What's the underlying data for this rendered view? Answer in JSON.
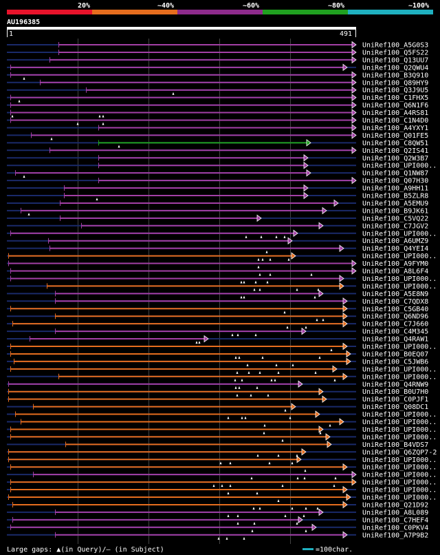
{
  "legend": {
    "ticks": [
      "20%",
      "~40%",
      "~60%",
      "~80%",
      "~100%"
    ],
    "colors": [
      "#e8132b",
      "#e66d1e",
      "#8e2b8c",
      "#20a020",
      "#1fb0c0"
    ]
  },
  "query": {
    "id": "AU196385",
    "start": "1",
    "end": "491"
  },
  "footer": {
    "gaps_text": "Large gaps: ▲(in Query)/— (in Subject)",
    "scale_text": "=100char."
  },
  "colors": {
    "orange": "#e66d1e",
    "purple": "#a33fa6",
    "green": "#20a020",
    "navy": "#1a2a6a",
    "grid": "#444444",
    "bar": "#ffffff"
  },
  "hits": [
    {
      "name": "UniRef100_A5G0S3",
      "c": "p",
      "s": 85,
      "e": 518,
      "g": []
    },
    {
      "name": "UniRef100_Q5FS22",
      "c": "p",
      "s": 85,
      "e": 518,
      "g": []
    },
    {
      "name": "UniRef100_Q13UU7",
      "c": "p",
      "s": 72,
      "e": 518,
      "g": []
    },
    {
      "name": "UniRef100_Q2QWU4",
      "c": "p",
      "s": 15,
      "e": 505,
      "g": []
    },
    {
      "name": "UniRef100_B3Q910",
      "c": "p",
      "s": 15,
      "e": 518,
      "g": [
        35
      ]
    },
    {
      "name": "UniRef100_Q89HY9",
      "c": "p",
      "s": 58,
      "e": 518,
      "g": []
    },
    {
      "name": "UniRef100_Q3J9U5",
      "c": "p",
      "s": 125,
      "e": 518,
      "g": [
        252
      ]
    },
    {
      "name": "UniRef100_C1FHX5",
      "c": "p",
      "s": 15,
      "e": 518,
      "g": [
        28
      ]
    },
    {
      "name": "UniRef100_Q6N1F6",
      "c": "p",
      "s": 15,
      "e": 518,
      "g": []
    },
    {
      "name": "UniRef100_A4RS81",
      "c": "p",
      "s": 15,
      "e": 518,
      "g": [
        18,
        145,
        150
      ]
    },
    {
      "name": "UniRef100_C1N4D0",
      "c": "p",
      "s": 15,
      "e": 518,
      "g": [
        113,
        150
      ]
    },
    {
      "name": "UniRef100_A4YXY1",
      "c": "p",
      "s": 143,
      "e": 518,
      "g": []
    },
    {
      "name": "UniRef100_Q01FE5",
      "c": "p",
      "s": 45,
      "e": 518,
      "g": [
        75
      ]
    },
    {
      "name": "UniRef100_C8QW51",
      "c": "g",
      "s": 143,
      "e": 452,
      "g": [
        173
      ]
    },
    {
      "name": "UniRef100_Q2IS41",
      "c": "p",
      "s": 72,
      "e": 518,
      "g": []
    },
    {
      "name": "UniRef100_Q2W3B7",
      "c": "p",
      "s": 143,
      "e": 448,
      "g": []
    },
    {
      "name": "UniRef100_UPI000..",
      "c": "p",
      "s": 143,
      "e": 448,
      "g": []
    },
    {
      "name": "UniRef100_Q1NW87",
      "c": "p",
      "s": 22,
      "e": 452,
      "g": [
        35
      ]
    },
    {
      "name": "UniRef100_Q07H30",
      "c": "p",
      "s": 143,
      "e": 518,
      "g": []
    },
    {
      "name": "UniRef100_A9HH11",
      "c": "p",
      "s": 93,
      "e": 448,
      "g": []
    },
    {
      "name": "UniRef100_B5ZLR8",
      "c": "p",
      "s": 93,
      "e": 448,
      "g": [
        141
      ]
    },
    {
      "name": "UniRef100_A5EMU9",
      "c": "p",
      "s": 87,
      "e": 492,
      "g": []
    },
    {
      "name": "UniRef100_B9JK61",
      "c": "p",
      "s": 30,
      "e": 475,
      "g": [
        42
      ]
    },
    {
      "name": "UniRef100_C5VQ22",
      "c": "p",
      "s": 87,
      "e": 380,
      "g": []
    },
    {
      "name": "UniRef100_C7JGV2",
      "c": "p",
      "s": 118,
      "e": 470,
      "g": []
    },
    {
      "name": "UniRef100_UPI000..",
      "c": "p",
      "s": 15,
      "e": 433,
      "g": [
        358,
        380,
        402,
        414
      ]
    },
    {
      "name": "UniRef100_A6UMZ9",
      "c": "p",
      "s": 70,
      "e": 425,
      "g": []
    },
    {
      "name": "UniRef100_Q4YEI4",
      "c": "p",
      "s": 72,
      "e": 500,
      "g": [
        388
      ]
    },
    {
      "name": "UniRef100_UPI000..",
      "c": "o",
      "s": 12,
      "e": 430,
      "g": [
        376,
        382,
        393,
        420
      ]
    },
    {
      "name": "UniRef100_A9FYM0",
      "c": "p",
      "s": 12,
      "e": 518,
      "g": [
        376
      ]
    },
    {
      "name": "UniRef100_A8L6F4",
      "c": "p",
      "s": 15,
      "e": 518,
      "g": [
        378,
        393,
        453
      ]
    },
    {
      "name": "UniRef100_UPI000..",
      "c": "p",
      "s": 15,
      "e": 500,
      "g": [
        351,
        355,
        372,
        389
      ]
    },
    {
      "name": "UniRef100_UPI000..",
      "c": "o",
      "s": 68,
      "e": 500,
      "g": [
        370,
        378,
        432,
        463
      ]
    },
    {
      "name": "UniRef100_A5E8N9",
      "c": "p",
      "s": 80,
      "e": 470,
      "g": [
        351,
        355,
        458
      ]
    },
    {
      "name": "UniRef100_C7QDX8",
      "c": "p",
      "s": 80,
      "e": 505,
      "g": []
    },
    {
      "name": "UniRef100_C5GB40",
      "c": "o",
      "s": 15,
      "e": 505,
      "g": [
        414
      ]
    },
    {
      "name": "UniRef100_Q6ND96",
      "c": "o",
      "s": 80,
      "e": 505,
      "g": [
        461,
        470
      ]
    },
    {
      "name": "UniRef100_C7J660",
      "c": "o",
      "s": 18,
      "e": 505,
      "g": [
        418,
        445
      ]
    },
    {
      "name": "UniRef100_C4M345",
      "c": "p",
      "s": 80,
      "e": 445,
      "g": [
        338,
        346,
        372
      ]
    },
    {
      "name": "UniRef100_Q4RAW1",
      "c": "p",
      "s": 43,
      "e": 303,
      "g": [
        286,
        290
      ]
    },
    {
      "name": "UniRef100_UPI000..",
      "c": "o",
      "s": 15,
      "e": 505,
      "g": [
        482
      ]
    },
    {
      "name": "UniRef100_B0EQ07",
      "c": "o",
      "s": 15,
      "e": 510,
      "g": [
        343,
        348,
        382,
        465
      ]
    },
    {
      "name": "UniRef100_C5JWB6",
      "c": "o",
      "s": 20,
      "e": 510,
      "g": [
        360,
        402,
        426
      ]
    },
    {
      "name": "UniRef100_UPI000..",
      "c": "o",
      "s": 15,
      "e": 490,
      "g": [
        345,
        362,
        378,
        405,
        459
      ]
    },
    {
      "name": "UniRef100_UPI000..",
      "c": "o",
      "s": 85,
      "e": 505,
      "g": [
        342,
        352,
        395,
        400,
        487
      ]
    },
    {
      "name": "UniRef100_Q4RNW9",
      "c": "p",
      "s": 12,
      "e": 440,
      "g": [
        343,
        348,
        374
      ]
    },
    {
      "name": "UniRef100_B0U7H0",
      "c": "o",
      "s": 12,
      "e": 470,
      "g": [
        345,
        365,
        390
      ]
    },
    {
      "name": "UniRef100_C0PJF1",
      "c": "o",
      "s": 12,
      "e": 475,
      "g": []
    },
    {
      "name": "UniRef100_Q08DC1",
      "c": "o",
      "s": 48,
      "e": 430,
      "g": [
        415
      ]
    },
    {
      "name": "UniRef100_UPI000..",
      "c": "o",
      "s": 22,
      "e": 465,
      "g": [
        332,
        352,
        357,
        422
      ]
    },
    {
      "name": "UniRef100_UPI000..",
      "c": "o",
      "s": 30,
      "e": 500,
      "g": [
        385,
        480
      ]
    },
    {
      "name": "UniRef100_UPI000..",
      "c": "o",
      "s": 15,
      "e": 470,
      "g": [
        384,
        466
      ]
    },
    {
      "name": "UniRef100_UPI000..",
      "c": "o",
      "s": 15,
      "e": 480,
      "g": [
        411
      ]
    },
    {
      "name": "UniRef100_B4VDS7",
      "c": "o",
      "s": 95,
      "e": 482,
      "g": []
    },
    {
      "name": "UniRef100_Q6ZQP7-2",
      "c": "o",
      "s": 12,
      "e": 445,
      "g": [
        375,
        405,
        432
      ]
    },
    {
      "name": "UniRef100_UPI000..",
      "c": "o",
      "s": 12,
      "e": 438,
      "g": [
        321,
        335,
        392,
        425
      ]
    },
    {
      "name": "UniRef100_UPI000..",
      "c": "o",
      "s": 15,
      "e": 505,
      "g": [
        444
      ]
    },
    {
      "name": "UniRef100_UPI000..",
      "c": "p",
      "s": 48,
      "e": 518,
      "g": [
        366,
        433,
        443,
        488
      ]
    },
    {
      "name": "UniRef100_UPI000..",
      "c": "o",
      "s": 15,
      "e": 518,
      "g": [
        311,
        323,
        335,
        411,
        486
      ]
    },
    {
      "name": "UniRef100_UPI000..",
      "c": "o",
      "s": 15,
      "e": 505,
      "g": [
        332,
        374
      ]
    },
    {
      "name": "UniRef100_UPI000..",
      "c": "o",
      "s": 12,
      "e": 510,
      "g": [
        405
      ]
    },
    {
      "name": "UniRef100_Q21D92",
      "c": "o",
      "s": 18,
      "e": 505,
      "g": [
        369,
        378,
        425,
        445,
        462
      ]
    },
    {
      "name": "UniRef100_A8L089",
      "c": "p",
      "s": 80,
      "e": 470,
      "g": [
        332,
        346,
        415,
        442
      ]
    },
    {
      "name": "UniRef100_C7HEF4",
      "c": "p",
      "s": 18,
      "e": 440,
      "g": [
        346,
        370,
        432
      ]
    },
    {
      "name": "UniRef100_C0PKV4",
      "c": "p",
      "s": 15,
      "e": 460,
      "g": [
        367,
        445
      ]
    },
    {
      "name": "UniRef100_A7P9B2",
      "c": "p",
      "s": 80,
      "e": 505,
      "g": [
        318,
        330,
        355
      ]
    }
  ]
}
